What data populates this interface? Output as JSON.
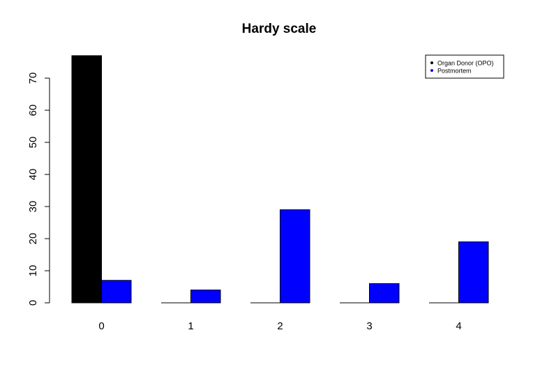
{
  "chart_data": {
    "type": "bar",
    "title": "Hardy scale",
    "xlabel": "",
    "ylabel": "",
    "categories": [
      "0",
      "1",
      "2",
      "3",
      "4"
    ],
    "series": [
      {
        "name": "Organ Donor (OPO)",
        "color": "#000000",
        "values": [
          77,
          0,
          0,
          0,
          0
        ]
      },
      {
        "name": "Postmortem",
        "color": "#0000ff",
        "values": [
          7,
          4,
          29,
          6,
          19
        ]
      }
    ],
    "ylim": [
      0,
      77
    ],
    "yticks": [
      "0",
      "10",
      "20",
      "30",
      "40",
      "50",
      "60",
      "70"
    ],
    "grid": false,
    "legend_position": "top-right"
  }
}
